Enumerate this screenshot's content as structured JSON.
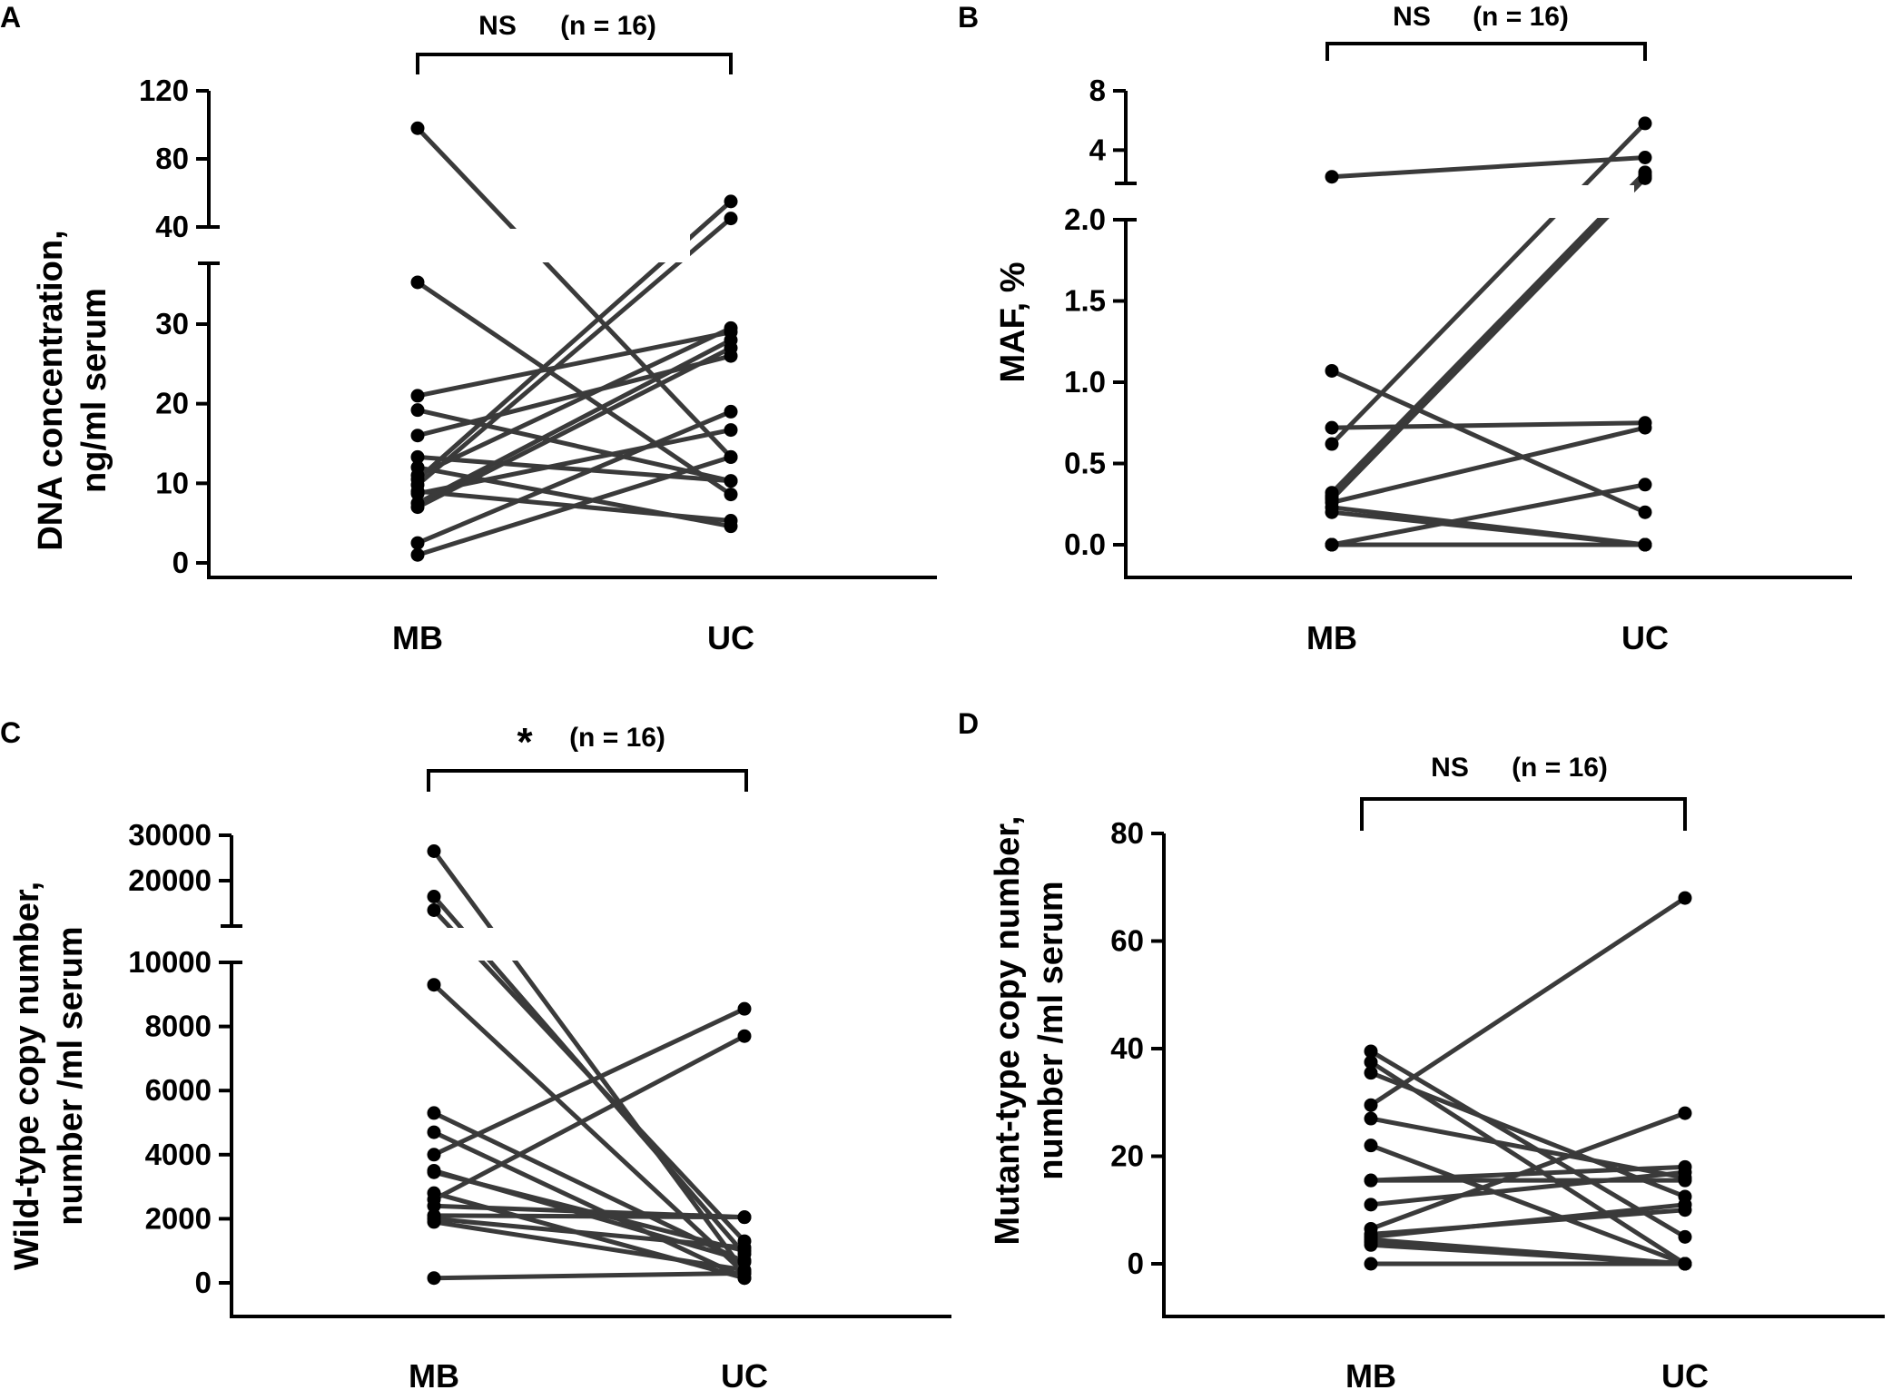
{
  "colors": {
    "line": "#3a3a3a",
    "point": "#000000",
    "axis": "#000000",
    "background": "#ffffff"
  },
  "chart_data": [
    {
      "panel": "A",
      "type": "line",
      "title": "",
      "xlabel": "",
      "ylabel": "DNA concentration, ng/ml serum",
      "ylabel_lines": [
        "DNA concentration,",
        "ng/ml serum"
      ],
      "categories": [
        "MB",
        "UC"
      ],
      "significance": "NS",
      "n_label": "(n = 16)",
      "yaxis_break": {
        "lower_range": [
          0,
          38
        ],
        "upper_range": [
          40,
          120
        ]
      },
      "yticks_lower": [
        0,
        10,
        20,
        30
      ],
      "yticks_upper": [
        40,
        80,
        120
      ],
      "series": [
        {
          "name": "pair-1",
          "values": [
            98,
            13.3
          ]
        },
        {
          "name": "pair-2",
          "values": [
            35.5,
            8.6
          ]
        },
        {
          "name": "pair-3",
          "values": [
            21.0,
            29.0
          ]
        },
        {
          "name": "pair-4",
          "values": [
            19.2,
            10.3
          ]
        },
        {
          "name": "pair-5",
          "values": [
            16.0,
            26.0
          ]
        },
        {
          "name": "pair-6",
          "values": [
            13.3,
            10.3
          ]
        },
        {
          "name": "pair-7",
          "values": [
            12.0,
            4.6
          ]
        },
        {
          "name": "pair-8",
          "values": [
            11.0,
            29.5
          ]
        },
        {
          "name": "pair-9",
          "values": [
            10.5,
            55.0
          ]
        },
        {
          "name": "pair-10",
          "values": [
            9.8,
            45.0
          ]
        },
        {
          "name": "pair-11",
          "values": [
            9.0,
            5.3
          ]
        },
        {
          "name": "pair-12",
          "values": [
            8.7,
            16.7
          ]
        },
        {
          "name": "pair-13",
          "values": [
            7.5,
            28.0
          ]
        },
        {
          "name": "pair-14",
          "values": [
            7.0,
            27.0
          ]
        },
        {
          "name": "pair-15",
          "values": [
            2.5,
            19.0
          ]
        },
        {
          "name": "pair-16",
          "values": [
            1.0,
            13.3
          ]
        }
      ]
    },
    {
      "panel": "B",
      "type": "line",
      "title": "",
      "xlabel": "",
      "ylabel": "MAF, %",
      "ylabel_lines": [
        "MAF, %"
      ],
      "categories": [
        "MB",
        "UC"
      ],
      "significance": "NS",
      "n_label": "(n = 16)",
      "yaxis_break": {
        "lower_range": [
          -0.2,
          2.0
        ],
        "upper_range": [
          2.0,
          8.0
        ]
      },
      "yticks_lower": [
        "0.0",
        "0.5",
        "1.0",
        "1.5",
        "2.0"
      ],
      "yticks_upper": [
        "4",
        "8"
      ],
      "series": [
        {
          "name": "pair-1",
          "values": [
            2.2,
            3.5
          ]
        },
        {
          "name": "pair-2",
          "values": [
            1.07,
            0.2
          ]
        },
        {
          "name": "pair-3",
          "values": [
            0.72,
            0.75
          ]
        },
        {
          "name": "pair-4",
          "values": [
            0.62,
            5.8
          ]
        },
        {
          "name": "pair-5",
          "values": [
            0.32,
            2.5
          ]
        },
        {
          "name": "pair-6",
          "values": [
            0.3,
            2.3
          ]
        },
        {
          "name": "pair-7",
          "values": [
            0.29,
            2.2
          ]
        },
        {
          "name": "pair-8",
          "values": [
            0.28,
            2.1
          ]
        },
        {
          "name": "pair-9",
          "values": [
            0.26,
            0.72
          ]
        },
        {
          "name": "pair-10",
          "values": [
            0.23,
            0.0
          ]
        },
        {
          "name": "pair-11",
          "values": [
            0.2,
            0.0
          ]
        },
        {
          "name": "pair-12",
          "values": [
            0.0,
            0.37
          ]
        },
        {
          "name": "pair-13",
          "values": [
            0.0,
            0.0
          ]
        },
        {
          "name": "pair-14",
          "values": [
            0.0,
            0.0
          ]
        },
        {
          "name": "pair-15",
          "values": [
            0.0,
            0.0
          ]
        },
        {
          "name": "pair-16",
          "values": [
            0.0,
            0.0
          ]
        }
      ]
    },
    {
      "panel": "C",
      "type": "line",
      "title": "",
      "xlabel": "",
      "ylabel": "Wild-type copy number, number /ml serum",
      "ylabel_lines": [
        "Wild-type copy number,",
        "number /ml serum"
      ],
      "categories": [
        "MB",
        "UC"
      ],
      "significance": "*",
      "n_label": "(n = 16)",
      "yaxis_break": {
        "lower_range": [
          -800,
          10000
        ],
        "upper_range": [
          10000,
          30000
        ]
      },
      "yticks_lower": [
        0,
        2000,
        4000,
        6000,
        8000,
        10000
      ],
      "yticks_upper": [
        20000,
        30000
      ],
      "series": [
        {
          "name": "pair-1",
          "values": [
            26500,
            350
          ]
        },
        {
          "name": "pair-2",
          "values": [
            16500,
            900
          ]
        },
        {
          "name": "pair-3",
          "values": [
            13500,
            1300
          ]
        },
        {
          "name": "pair-4",
          "values": [
            9300,
            300
          ]
        },
        {
          "name": "pair-5",
          "values": [
            5300,
            650
          ]
        },
        {
          "name": "pair-6",
          "values": [
            4700,
            150
          ]
        },
        {
          "name": "pair-7",
          "values": [
            4000,
            8550
          ]
        },
        {
          "name": "pair-8",
          "values": [
            3500,
            700
          ]
        },
        {
          "name": "pair-9",
          "values": [
            3450,
            1000
          ]
        },
        {
          "name": "pair-10",
          "values": [
            2800,
            150
          ]
        },
        {
          "name": "pair-11",
          "values": [
            2600,
            7700
          ]
        },
        {
          "name": "pair-12",
          "values": [
            2400,
            2050
          ]
        },
        {
          "name": "pair-13",
          "values": [
            2100,
            2050
          ]
        },
        {
          "name": "pair-14",
          "values": [
            2000,
            1100
          ]
        },
        {
          "name": "pair-15",
          "values": [
            1900,
            400
          ]
        },
        {
          "name": "pair-16",
          "values": [
            150,
            300
          ]
        }
      ]
    },
    {
      "panel": "D",
      "type": "line",
      "title": "",
      "xlabel": "",
      "ylabel": "Mutant-type copy number, number /ml serum",
      "ylabel_lines": [
        "Mutant-type copy number,",
        "number /ml serum"
      ],
      "categories": [
        "MB",
        "UC"
      ],
      "significance": "NS",
      "n_label": "(n = 16)",
      "ylim": [
        -10,
        80
      ],
      "yticks": [
        0,
        20,
        40,
        60,
        80
      ],
      "series": [
        {
          "name": "pair-1",
          "values": [
            39.5,
            5.0
          ]
        },
        {
          "name": "pair-2",
          "values": [
            37.5,
            0.0
          ]
        },
        {
          "name": "pair-3",
          "values": [
            35.5,
            12.5
          ]
        },
        {
          "name": "pair-4",
          "values": [
            29.5,
            68.0
          ]
        },
        {
          "name": "pair-5",
          "values": [
            27.0,
            16.0
          ]
        },
        {
          "name": "pair-6",
          "values": [
            22.0,
            0.0
          ]
        },
        {
          "name": "pair-7",
          "values": [
            15.5,
            15.5
          ]
        },
        {
          "name": "pair-8",
          "values": [
            15.5,
            18.0
          ]
        },
        {
          "name": "pair-9",
          "values": [
            11.0,
            17.0
          ]
        },
        {
          "name": "pair-10",
          "values": [
            6.5,
            28.0
          ]
        },
        {
          "name": "pair-11",
          "values": [
            5.5,
            10.0
          ]
        },
        {
          "name": "pair-12",
          "values": [
            5.0,
            11.0
          ]
        },
        {
          "name": "pair-13",
          "values": [
            4.5,
            0.0
          ]
        },
        {
          "name": "pair-14",
          "values": [
            4.0,
            0.0
          ]
        },
        {
          "name": "pair-15",
          "values": [
            3.5,
            0.0
          ]
        },
        {
          "name": "pair-16",
          "values": [
            0.0,
            0.0
          ]
        }
      ]
    }
  ]
}
